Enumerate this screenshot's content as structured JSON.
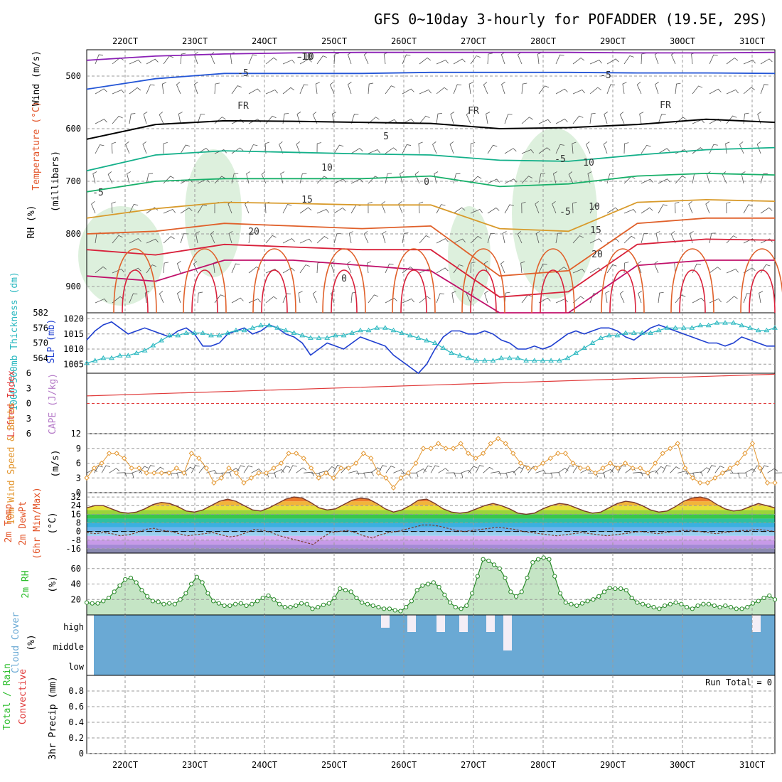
{
  "header": {
    "title": "GFS 0~10day 3-hourly for POFADDER (19.5E, 29S)"
  },
  "colors": {
    "temp_lines": [
      "#8a1fb5",
      "#2456d6",
      "#1a9ad6",
      "#14b08a",
      "#18b06a",
      "#d89a2a",
      "#e0602a",
      "#d8203a",
      "#c0106a"
    ],
    "slp": "#1f3fd0",
    "thickness": "#2ab8c0",
    "wind10": "#e3962f",
    "rh_fill": "#9fd49f",
    "cloud_fill": "#6aa9d4",
    "temp_warm": "#e3552a",
    "cape": "#b57ac8",
    "lifted": "#e03a3a",
    "rain": "#2fbf2f",
    "conv": "#e03a3a"
  },
  "chart_data": {
    "x_axis": {
      "labels": [
        "22OCT",
        "23OCT",
        "24OCT",
        "25OCT",
        "26OCT",
        "27OCT",
        "28OCT",
        "29OCT",
        "30OCT",
        "31OCT"
      ],
      "type": "date",
      "interval": "3-hourly"
    },
    "panels": [
      {
        "id": "upper_air",
        "type": "contour",
        "ylabels": [
          "Wind (m/s)",
          "Temperature (°C)",
          "RH (%)",
          "(millibars)"
        ],
        "yticks": [
          500,
          600,
          700,
          800,
          900
        ],
        "ylim": [
          950,
          450
        ],
        "contour_labels": [
          "-10",
          "-5",
          "-5",
          "FR",
          "FR",
          "FR",
          "-5",
          "0",
          "5",
          "10",
          "10",
          "15",
          "15",
          "20",
          "20",
          "-5",
          "-5",
          "10",
          "-10",
          "0"
        ],
        "isotherms": [
          {
            "label": "-10",
            "values": [
              470,
              462,
              458,
              456,
              455,
              455,
              455,
              455,
              456,
              456,
              455
            ]
          },
          {
            "label": "-5",
            "values": [
              525,
              505,
              495,
              495,
              495,
              493,
              493,
              493,
              494,
              494,
              495
            ]
          },
          {
            "label": "FR",
            "values": [
              620,
              592,
              585,
              586,
              588,
              590,
              600,
              598,
              592,
              582,
              588
            ]
          },
          {
            "label": "-5",
            "values": [
              680,
              650,
              642,
              645,
              648,
              650,
              660,
              662,
              650,
              640,
              636
            ]
          },
          {
            "label": "0",
            "values": [
              720,
              700,
              695,
              695,
              695,
              690,
              710,
              705,
              690,
              685,
              688
            ]
          },
          {
            "label": "5",
            "values": [
              770,
              752,
              740,
              742,
              745,
              745,
              790,
              795,
              740,
              735,
              738
            ]
          },
          {
            "label": "10",
            "values": [
              800,
              795,
              780,
              785,
              790,
              785,
              880,
              870,
              780,
              770,
              770
            ]
          },
          {
            "label": "15",
            "values": [
              830,
              840,
              820,
              825,
              830,
              830,
              920,
              910,
              820,
              810,
              812
            ]
          },
          {
            "label": "20",
            "values": [
              880,
              890,
              850,
              850,
              860,
              870,
              950,
              950,
              860,
              850,
              850
            ]
          }
        ]
      },
      {
        "id": "slp_thickness",
        "type": "line",
        "ylabels": [
          "1000-500mb Thickness (dm)",
          "SLP (mb)"
        ],
        "yticks_left": [
          564,
          570,
          576,
          582
        ],
        "yticks_right": [
          1005,
          1010,
          1015,
          1020
        ],
        "ylim_left": [
          558,
          582
        ],
        "ylim_right": [
          1002,
          1022
        ],
        "series": [
          {
            "name": "SLP (mb)",
            "values": [
              1013,
              1016,
              1018,
              1019,
              1017,
              1015,
              1016,
              1017,
              1016,
              1015,
              1014,
              1016,
              1017,
              1015,
              1011,
              1011,
              1012,
              1015,
              1016,
              1017,
              1015,
              1016,
              1018,
              1017,
              1015,
              1014,
              1012,
              1008,
              1010,
              1012,
              1011,
              1010,
              1012,
              1014,
              1013,
              1012,
              1011,
              1008,
              1006,
              1004,
              1002,
              1005,
              1010,
              1014,
              1016,
              1016,
              1015,
              1015,
              1016,
              1015,
              1013,
              1012,
              1010,
              1010,
              1011,
              1010,
              1011,
              1013,
              1015,
              1016,
              1015,
              1016,
              1017,
              1017,
              1016,
              1014,
              1013,
              1015,
              1017,
              1018,
              1017,
              1016,
              1015,
              1014,
              1013,
              1012,
              1012,
              1011,
              1012,
              1014,
              1013,
              1012,
              1011,
              1011
            ]
          },
          {
            "name": "Thickness (dm)",
            "values": [
              562,
              563,
              564,
              564,
              565,
              565,
              566,
              567,
              569,
              571,
              573,
              573,
              574,
              574,
              574,
              573,
              573,
              574,
              575,
              575,
              576,
              577,
              577,
              576,
              575,
              574,
              573,
              572,
              572,
              572,
              573,
              573,
              574,
              575,
              575,
              576,
              576,
              575,
              574,
              573,
              572,
              571,
              570,
              568,
              566,
              565,
              564,
              563,
              563,
              563,
              564,
              564,
              564,
              563,
              563,
              563,
              563,
              563,
              564,
              566,
              568,
              570,
              572,
              573,
              573,
              574,
              574,
              574,
              574,
              575,
              576,
              576,
              576,
              576,
              577,
              577,
              578,
              578,
              578,
              577,
              576,
              575,
              575,
              576
            ]
          }
        ]
      },
      {
        "id": "cape_li",
        "type": "line",
        "ylabels": [
          "Lifted Index",
          "CAPE (J/kg)"
        ],
        "yticks": [
          -6,
          -3,
          0,
          3,
          6
        ],
        "yticklabels": [
          "6",
          "3",
          "0",
          "3",
          "6"
        ],
        "ylim": [
          6,
          -6
        ],
        "series": [
          {
            "name": "Lifted Index",
            "values": [
              1.5,
              5.8
            ]
          }
        ]
      },
      {
        "id": "wind10m",
        "type": "line",
        "ylabels": [
          "10m Wind Speed & Barbs",
          "(m/s)"
        ],
        "yticks": [
          0,
          3,
          6,
          9,
          12
        ],
        "ylim": [
          0,
          12
        ],
        "series": [
          {
            "name": "10m Wind Speed",
            "values": [
              3,
              5,
              6,
              8,
              8,
              7,
              5,
              5,
              4,
              4,
              4,
              4,
              5,
              4,
              8,
              7,
              5,
              2,
              3,
              5,
              4,
              2,
              3,
              4,
              4,
              5,
              6,
              8,
              8,
              7,
              5,
              3,
              4,
              3,
              5,
              5,
              6,
              8,
              7,
              4,
              3,
              1,
              3,
              4,
              6,
              9,
              9,
              10,
              9,
              9,
              10,
              8,
              7,
              8,
              10,
              11,
              10,
              8,
              6,
              5,
              5,
              6,
              7,
              8,
              8,
              6,
              5,
              5,
              4,
              5,
              6,
              5,
              6,
              5,
              5,
              4,
              6,
              8,
              9,
              10,
              5,
              3,
              2,
              2,
              3,
              4,
              5,
              6,
              8,
              10,
              5,
              2,
              2
            ]
          }
        ]
      },
      {
        "id": "temp2m",
        "type": "area",
        "ylabels": [
          "2m Temp",
          "2m DewPt",
          "(6hr Min/Max)",
          "(°C)"
        ],
        "yticks": [
          32,
          24,
          16,
          8,
          0,
          -8,
          -16
        ],
        "yticklabels": [
          "32",
          "24",
          "16",
          "8",
          "0",
          "-8",
          "-16"
        ],
        "ylim": [
          -20,
          36
        ],
        "series": [
          {
            "name": "2m Temp",
            "values": [
              22,
              24,
              24,
              21,
              18,
              17,
              18,
              21,
              25,
              27,
              26,
              23,
              19,
              18,
              20,
              24,
              28,
              30,
              28,
              24,
              20,
              19,
              22,
              26,
              30,
              32,
              31,
              27,
              22,
              20,
              21,
              25,
              29,
              31,
              30,
              26,
              21,
              18,
              20,
              24,
              29,
              30,
              26,
              21,
              18,
              17,
              18,
              21,
              24,
              26,
              24,
              21,
              17,
              16,
              17,
              21,
              24,
              26,
              25,
              22,
              19,
              17,
              18,
              22,
              26,
              28,
              27,
              24,
              20,
              18,
              19,
              23,
              28,
              31,
              32,
              30,
              25,
              21,
              19,
              20,
              23,
              26,
              24,
              22
            ]
          },
          {
            "name": "2m DewPt",
            "values": [
              -1,
              -2,
              -1,
              -2,
              -4,
              -3,
              -1,
              2,
              3,
              1,
              0,
              -2,
              -4,
              -3,
              -2,
              -1,
              -3,
              -5,
              -4,
              -1,
              2,
              1,
              -1,
              -4,
              -6,
              -8,
              -10,
              -12,
              -6,
              -1,
              0,
              1,
              -1,
              -4,
              -6,
              -3,
              -1,
              0,
              2,
              4,
              6,
              6,
              5,
              3,
              1,
              0,
              1,
              2,
              3,
              4,
              3,
              2,
              0,
              -1,
              -2,
              -3,
              -4,
              -3,
              -2,
              -1,
              -2,
              -3,
              -4,
              -3,
              -2,
              -1,
              0,
              -1,
              -2,
              -1,
              0,
              1,
              1,
              0,
              -1,
              -2,
              -1,
              0,
              1,
              1,
              2,
              1,
              0
            ]
          }
        ]
      },
      {
        "id": "rh2m",
        "type": "area",
        "ylabels": [
          "2m RH",
          "(%)"
        ],
        "yticks": [
          20,
          40,
          60
        ],
        "ylim": [
          0,
          80
        ],
        "series": [
          {
            "name": "2m RH",
            "values": [
              16,
              15,
              15,
              18,
              22,
              30,
              38,
              46,
              48,
              42,
              32,
              24,
              18,
              17,
              14,
              15,
              14,
              20,
              28,
              40,
              49,
              42,
              28,
              18,
              15,
              12,
              12,
              14,
              15,
              12,
              14,
              18,
              22,
              25,
              20,
              14,
              10,
              10,
              12,
              15,
              14,
              8,
              10,
              13,
              15,
              22,
              34,
              32,
              30,
              22,
              16,
              14,
              12,
              10,
              8,
              8,
              6,
              5,
              10,
              18,
              32,
              38,
              40,
              42,
              36,
              26,
              16,
              10,
              8,
              12,
              28,
              50,
              72,
              70,
              65,
              60,
              48,
              30,
              24,
              30,
              48,
              68,
              72,
              74,
              72,
              50,
              28,
              16,
              14,
              12,
              15,
              18,
              20,
              24,
              30,
              35,
              34,
              34,
              32,
              22,
              16,
              14,
              12,
              10,
              8,
              12,
              14,
              16,
              14,
              10,
              8,
              12,
              14,
              14,
              12,
              10,
              12,
              10,
              8,
              8,
              10,
              15,
              18,
              22,
              25,
              20
            ]
          }
        ]
      },
      {
        "id": "cloud",
        "type": "area",
        "ylabels": [
          "Cloud Cover",
          "(%)"
        ],
        "yticklabels": [
          "high",
          "middle",
          "low"
        ]
      },
      {
        "id": "precip",
        "type": "bar",
        "ylabels": [
          "Total / Rain",
          "Convective",
          "3hr Precip (mm)"
        ],
        "yticks": [
          0,
          0.2,
          0.4,
          0.6,
          0.8
        ],
        "yticklabels": [
          "0",
          "0.2",
          "0.4",
          "0.6",
          "0.8"
        ],
        "ylim": [
          0,
          1.0
        ],
        "annotation": "Run Total = 0",
        "series": [
          {
            "name": "Total / Rain",
            "values": []
          },
          {
            "name": "Convective",
            "values": []
          }
        ]
      }
    ]
  }
}
